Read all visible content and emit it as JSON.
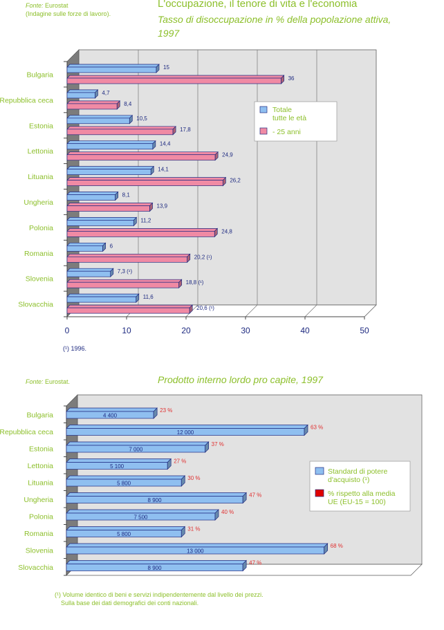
{
  "chart1": {
    "source_label": "Fonte:",
    "source_name": "Eurostat",
    "source_detail": "(Indagine sulle forze di lavoro).",
    "title": "L'occupazione, il tenore di vita e l'economia",
    "subtitle": "Tasso di disoccupazione in % della popolazione attiva, 1997",
    "footnote": "(¹) 1996.",
    "legend": [
      "Totale tutte le età",
      "- 25 anni"
    ]
  },
  "chart2": {
    "source_label": "Fonte:",
    "source_name": "Eurostat.",
    "title": "Prodotto interno lordo pro capite, 1997",
    "footnote_line1": "(¹) Volume identico di beni e servizi indipendentemente dal livello dei prezzi.",
    "footnote_line2": "Sulla base dei dati demografici dei conti nazionali.",
    "legend": [
      "Standard di potere d'acquisto (¹)",
      "% rispetto alla media UE (EU-15 = 100)"
    ]
  },
  "chart_data": [
    {
      "type": "bar",
      "orientation": "horizontal",
      "categories": [
        "Bulgaria",
        "Repubblica ceca",
        "Estonia",
        "Lettonia",
        "Lituania",
        "Ungheria",
        "Polonia",
        "Romania",
        "Slovenia",
        "Slovacchia"
      ],
      "series": [
        {
          "name": "Totale tutte le età",
          "values": [
            15,
            4.7,
            10.5,
            14.4,
            14.1,
            8.1,
            11.2,
            6,
            7.3,
            11.6
          ],
          "labels": [
            "15",
            "4,7",
            "10,5",
            "14,4",
            "14,1",
            "8,1",
            "11,2",
            "6",
            "7,3 (¹)",
            "11,6"
          ]
        },
        {
          "name": "- 25 anni",
          "values": [
            36,
            8.4,
            17.8,
            24.9,
            26.2,
            13.9,
            24.8,
            20.2,
            18.8,
            20.6
          ],
          "labels": [
            "36",
            "8,4",
            "17,8",
            "24,9",
            "26,2",
            "13,9",
            "24,8",
            "20,2 (¹)",
            "18,8 (¹)",
            "20,6 (¹)"
          ]
        }
      ],
      "xlim": [
        0,
        50
      ],
      "xticks": [
        "0",
        "10",
        "20",
        "30",
        "40",
        "50"
      ],
      "grid": true,
      "legend_position": "right",
      "colors": {
        "series1": "#8fbff0",
        "series2": "#f08aa4",
        "back": "#e2e2e2",
        "side": "#7c7c7c",
        "label": "#1e2a80",
        "category": "#8cbf2a"
      }
    },
    {
      "type": "bar",
      "orientation": "horizontal",
      "categories": [
        "Bulgaria",
        "Repubblica ceca",
        "Estonia",
        "Lettonia",
        "Lituania",
        "Ungheria",
        "Polonia",
        "Romania",
        "Slovenia",
        "Slovacchia"
      ],
      "series": [
        {
          "name": "Standard di potere d'acquisto (¹)",
          "values": [
            4400,
            12000,
            7000,
            5100,
            5800,
            8900,
            7500,
            5800,
            13000,
            8900
          ],
          "labels": [
            "4 400",
            "12 000",
            "7 000",
            "5 100",
            "5 800",
            "8 900",
            "7 500",
            "5 800",
            "13 000",
            "8 900"
          ]
        },
        {
          "name": "% rispetto alla media UE (EU-15 = 100)",
          "values": [
            23,
            63,
            37,
            27,
            30,
            47,
            40,
            31,
            68,
            47
          ],
          "labels": [
            "23 %",
            "63 %",
            "37 %",
            "27 %",
            "30 %",
            "47 %",
            "40 %",
            "31 %",
            "68 %",
            "47 %"
          ]
        }
      ],
      "legend_position": "right",
      "colors": {
        "series1": "#8fbff0",
        "series2": "#e00000",
        "back": "#e2e2e2",
        "side": "#7c7c7c",
        "label": "#1e2a80",
        "pct": "#e03030",
        "category": "#8cbf2a"
      }
    }
  ]
}
